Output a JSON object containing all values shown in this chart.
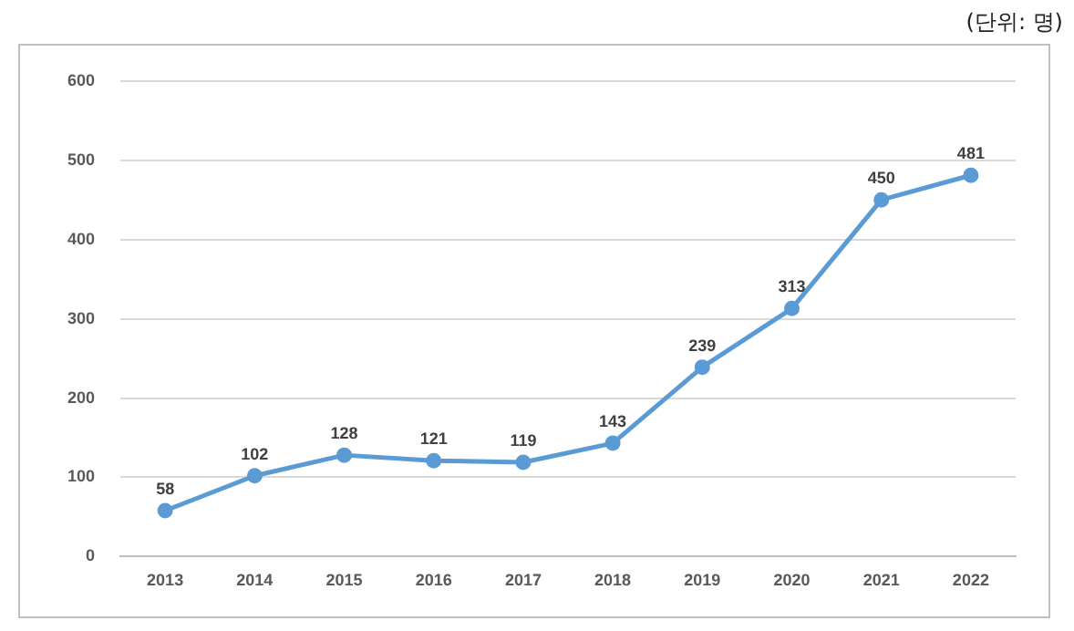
{
  "chart_data": {
    "type": "line",
    "subtitle": "(단위: 명)",
    "categories": [
      "2013",
      "2014",
      "2015",
      "2016",
      "2017",
      "2018",
      "2019",
      "2020",
      "2021",
      "2022"
    ],
    "values": [
      58,
      102,
      128,
      121,
      119,
      143,
      239,
      313,
      450,
      481
    ],
    "color": "#5b9bd5",
    "ylim": [
      0,
      600
    ],
    "yticks": [
      0,
      100,
      200,
      300,
      400,
      500,
      600
    ],
    "grid": "y",
    "marker": "circle",
    "line_style": "solid",
    "data_labels": true,
    "legend": false
  }
}
